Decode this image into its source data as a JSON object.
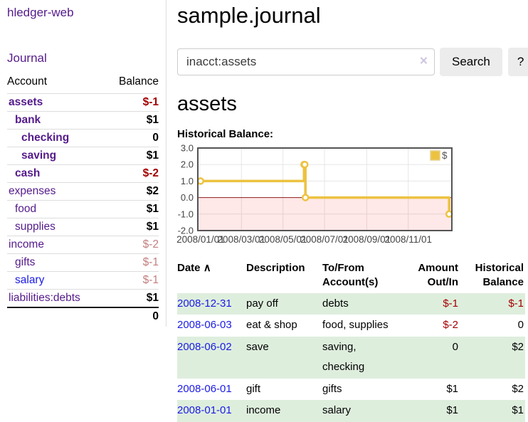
{
  "colors": {
    "link_purple": "#551a8b",
    "link_blue": "#1a1ae6",
    "negative_strong": "#a40000",
    "negative_muted": "#c47e7e",
    "row_green": "#deeedd",
    "accent_yellow": "#edc240"
  },
  "app": {
    "title": "hledger-web",
    "nav_journal": "Journal"
  },
  "sidebar": {
    "header": {
      "account": "Account",
      "balance": "Balance"
    },
    "accounts": [
      {
        "name": "assets",
        "level": 0,
        "bold": true,
        "color": "purple",
        "balance": "$-1",
        "balance_style": "neg-strong"
      },
      {
        "name": "bank",
        "level": 1,
        "bold": true,
        "color": "purple",
        "balance": "$1",
        "balance_style": "pos"
      },
      {
        "name": "checking",
        "level": 2,
        "bold": true,
        "color": "purple",
        "balance": "0",
        "balance_style": "pos"
      },
      {
        "name": "saving",
        "level": 2,
        "bold": true,
        "color": "purple",
        "balance": "$1",
        "balance_style": "pos"
      },
      {
        "name": "cash",
        "level": 1,
        "bold": true,
        "color": "purple",
        "balance": "$-2",
        "balance_style": "neg-strong"
      },
      {
        "name": "expenses",
        "level": 0,
        "bold": false,
        "color": "purple",
        "balance": "$2",
        "balance_style": "pos"
      },
      {
        "name": "food",
        "level": 1,
        "bold": false,
        "color": "purple",
        "balance": "$1",
        "balance_style": "pos"
      },
      {
        "name": "supplies",
        "level": 1,
        "bold": false,
        "color": "purple",
        "balance": "$1",
        "balance_style": "pos"
      },
      {
        "name": "income",
        "level": 0,
        "bold": false,
        "color": "purple",
        "balance": "$-2",
        "balance_style": "neg-muted"
      },
      {
        "name": "gifts",
        "level": 1,
        "bold": false,
        "color": "purple",
        "balance": "$-1",
        "balance_style": "neg-muted"
      },
      {
        "name": "salary",
        "level": 1,
        "bold": false,
        "color": "blue",
        "balance": "$-1",
        "balance_style": "neg-muted"
      },
      {
        "name": "liabilities:debts",
        "level": 0,
        "bold": false,
        "color": "purple",
        "balance": "$1",
        "balance_style": "pos"
      }
    ],
    "total": "0"
  },
  "header": {
    "title": "sample.journal"
  },
  "search": {
    "value": "inacct:assets",
    "clear_icon": "×",
    "button_label": "Search",
    "help_label": "?"
  },
  "register": {
    "heading": "assets",
    "chart_title": "Historical Balance:"
  },
  "chart_data": {
    "type": "line",
    "title": "Historical Balance:",
    "step": true,
    "series": [
      {
        "name": "$",
        "color": "#edc240",
        "points": [
          [
            "2008-01-01",
            1
          ],
          [
            "2008-06-01",
            2
          ],
          [
            "2008-06-02",
            2
          ],
          [
            "2008-06-03",
            0
          ],
          [
            "2008-12-31",
            -1
          ]
        ]
      }
    ],
    "xrange": [
      "2008-01-01",
      "2008-12-31"
    ],
    "ylim": [
      -2,
      3
    ],
    "yticks": [
      "3.0",
      "2.0",
      "1.0",
      "0.0",
      "-1.0",
      "-2.0"
    ],
    "ytick_values": [
      3,
      2,
      1,
      0,
      -1,
      -2
    ],
    "xticks": [
      {
        "date": "2008-01-01",
        "label": "2008/01/01"
      },
      {
        "date": "2008-03-01",
        "label": "2008/03/01"
      },
      {
        "date": "2008-05-01",
        "label": "2008/05/01"
      },
      {
        "date": "2008-07-01",
        "label": "2008/07/01"
      },
      {
        "date": "2008-09-01",
        "label": "2008/09/01"
      },
      {
        "date": "2008-11-01",
        "label": "2008/11/01"
      }
    ],
    "legend_position": "top-right",
    "grid": true,
    "negative_region_color": "rgba(255,0,0,0.09)",
    "zero_line_color": "#8b1a1a",
    "grid_line_color": "#e6e6e6",
    "border_color": "#545454",
    "tick_label_color": "#444444"
  },
  "table": {
    "headers": {
      "date": "Date",
      "sort_icon": "∧",
      "description": "Description",
      "accounts": "To/From Account(s)",
      "amount": "Amount Out/In",
      "balance": "Historical Balance"
    },
    "rows": [
      {
        "date": "2008-12-31",
        "description": "pay off",
        "accounts": "debts",
        "amount": "$-1",
        "amount_neg": true,
        "balance": "$-1",
        "balance_neg": true
      },
      {
        "date": "2008-06-03",
        "description": "eat & shop",
        "accounts": "food, supplies",
        "amount": "$-2",
        "amount_neg": true,
        "balance": "0",
        "balance_neg": false
      },
      {
        "date": "2008-06-02",
        "description": "save",
        "accounts": "saving, checking",
        "amount": "0",
        "amount_neg": false,
        "balance": "$2",
        "balance_neg": false
      },
      {
        "date": "2008-06-01",
        "description": "gift",
        "accounts": "gifts",
        "amount": "$1",
        "amount_neg": false,
        "balance": "$2",
        "balance_neg": false
      },
      {
        "date": "2008-01-01",
        "description": "income",
        "accounts": "salary",
        "amount": "$1",
        "amount_neg": false,
        "balance": "$1",
        "balance_neg": false
      }
    ]
  }
}
